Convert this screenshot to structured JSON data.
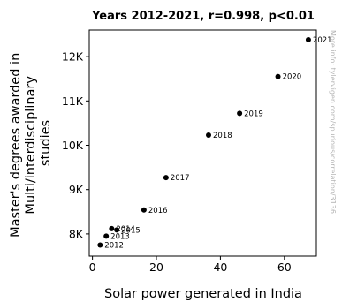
{
  "chart_data": {
    "type": "scatter",
    "title": "Years 2012-2021, r=0.998, p<0.01",
    "xlabel": "Solar power generated in India",
    "ylabel": "Master's degrees awarded in Multi/interdisciplinary studies",
    "ylabel_lines": [
      "Master's degrees awarded in",
      "Multi/interdisciplinary",
      "studies"
    ],
    "xlim": [
      -1,
      70
    ],
    "ylim": [
      7500,
      12600
    ],
    "x_ticks": [
      0,
      20,
      40,
      60
    ],
    "x_tick_labels": [
      "0",
      "20",
      "40",
      "60"
    ],
    "y_ticks": [
      8000,
      9000,
      10000,
      11000,
      12000
    ],
    "y_tick_labels": [
      "8K",
      "9K",
      "10K",
      "11K",
      "12K"
    ],
    "grid": false,
    "marker_color": "#000000",
    "points": [
      {
        "label": "2012",
        "x": 2.4,
        "y": 7750
      },
      {
        "label": "2013",
        "x": 4.3,
        "y": 7950
      },
      {
        "label": "2014",
        "x": 6.0,
        "y": 8120
      },
      {
        "label": "2015",
        "x": 7.6,
        "y": 8090
      },
      {
        "label": "2016",
        "x": 16.1,
        "y": 8540
      },
      {
        "label": "2017",
        "x": 23.0,
        "y": 9270
      },
      {
        "label": "2018",
        "x": 36.3,
        "y": 10230
      },
      {
        "label": "2019",
        "x": 46.0,
        "y": 10720
      },
      {
        "label": "2020",
        "x": 58.0,
        "y": 11550
      },
      {
        "label": "2021",
        "x": 67.5,
        "y": 12380
      }
    ]
  },
  "watermark": "More info: tylervigen.com/spurious/correlation/3136"
}
